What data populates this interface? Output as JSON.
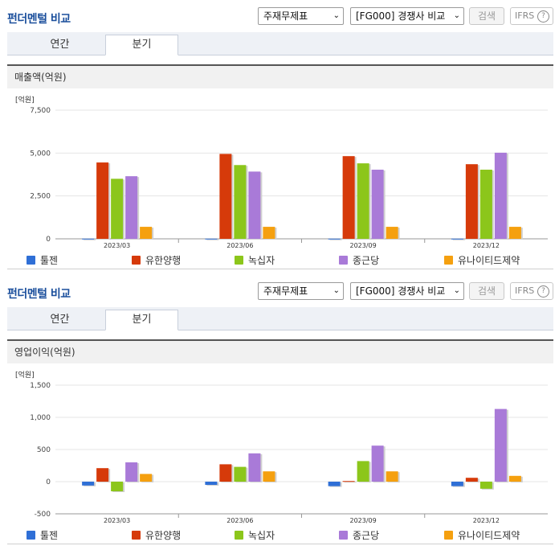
{
  "panels": [
    {
      "title": "펀더멘털 비교",
      "select1": "주재무제표",
      "select2": "[FG000] 경쟁사 비교",
      "search_label": "검색",
      "ifrs_label": "IFRS",
      "help_icon": "question-circle-icon",
      "tabs": [
        "연간",
        "분기"
      ],
      "active_tab": "분기",
      "section_title": "매출액(억원)"
    },
    {
      "title": "펀더멘털 비교",
      "select1": "주재무제표",
      "select2": "[FG000] 경쟁사 비교",
      "search_label": "검색",
      "ifrs_label": "IFRS",
      "help_icon": "question-circle-icon",
      "tabs": [
        "연간",
        "분기"
      ],
      "active_tab": "분기",
      "section_title": "영업이익(억원)"
    }
  ],
  "chart_data": [
    {
      "type": "bar",
      "title": "매출액(억원)",
      "unit_label": "[억원]",
      "categories": [
        "2023/03",
        "2023/06",
        "2023/09",
        "2023/12"
      ],
      "ylim": [
        0,
        7500
      ],
      "yticks": [
        0,
        2500,
        5000,
        7500
      ],
      "ytick_labels": [
        "0",
        "2,500",
        "5,000",
        "7,500"
      ],
      "grid": true,
      "legend_position": "bottom",
      "series": [
        {
          "name": "툴젠",
          "color": "#2f6fd6",
          "values": [
            10,
            10,
            10,
            10
          ]
        },
        {
          "name": "유한양행",
          "color": "#d63a0a",
          "values": [
            4450,
            4950,
            4820,
            4350
          ]
        },
        {
          "name": "녹십자",
          "color": "#8cc61b",
          "values": [
            3500,
            4300,
            4400,
            4030
          ]
        },
        {
          "name": "종근당",
          "color": "#a97ad8",
          "values": [
            3650,
            3920,
            4030,
            5020
          ]
        },
        {
          "name": "유나이티드제약",
          "color": "#f5a00f",
          "values": [
            700,
            700,
            700,
            700
          ]
        }
      ]
    },
    {
      "type": "bar",
      "title": "영업이익(억원)",
      "unit_label": "[억원]",
      "categories": [
        "2023/03",
        "2023/06",
        "2023/09",
        "2023/12"
      ],
      "ylim": [
        -500,
        1500
      ],
      "yticks": [
        -500,
        0,
        500,
        1000,
        1500
      ],
      "ytick_labels": [
        "-500",
        "0",
        "500",
        "1,000",
        "1,500"
      ],
      "grid": true,
      "legend_position": "bottom",
      "series": [
        {
          "name": "툴젠",
          "color": "#2f6fd6",
          "values": [
            -60,
            -50,
            -70,
            -70
          ]
        },
        {
          "name": "유한양행",
          "color": "#d63a0a",
          "values": [
            210,
            270,
            10,
            60
          ]
        },
        {
          "name": "녹십자",
          "color": "#8cc61b",
          "values": [
            -150,
            230,
            320,
            -110
          ]
        },
        {
          "name": "종근당",
          "color": "#a97ad8",
          "values": [
            300,
            440,
            560,
            1130
          ]
        },
        {
          "name": "유나이티드제약",
          "color": "#f5a00f",
          "values": [
            120,
            160,
            160,
            90
          ]
        }
      ]
    }
  ]
}
